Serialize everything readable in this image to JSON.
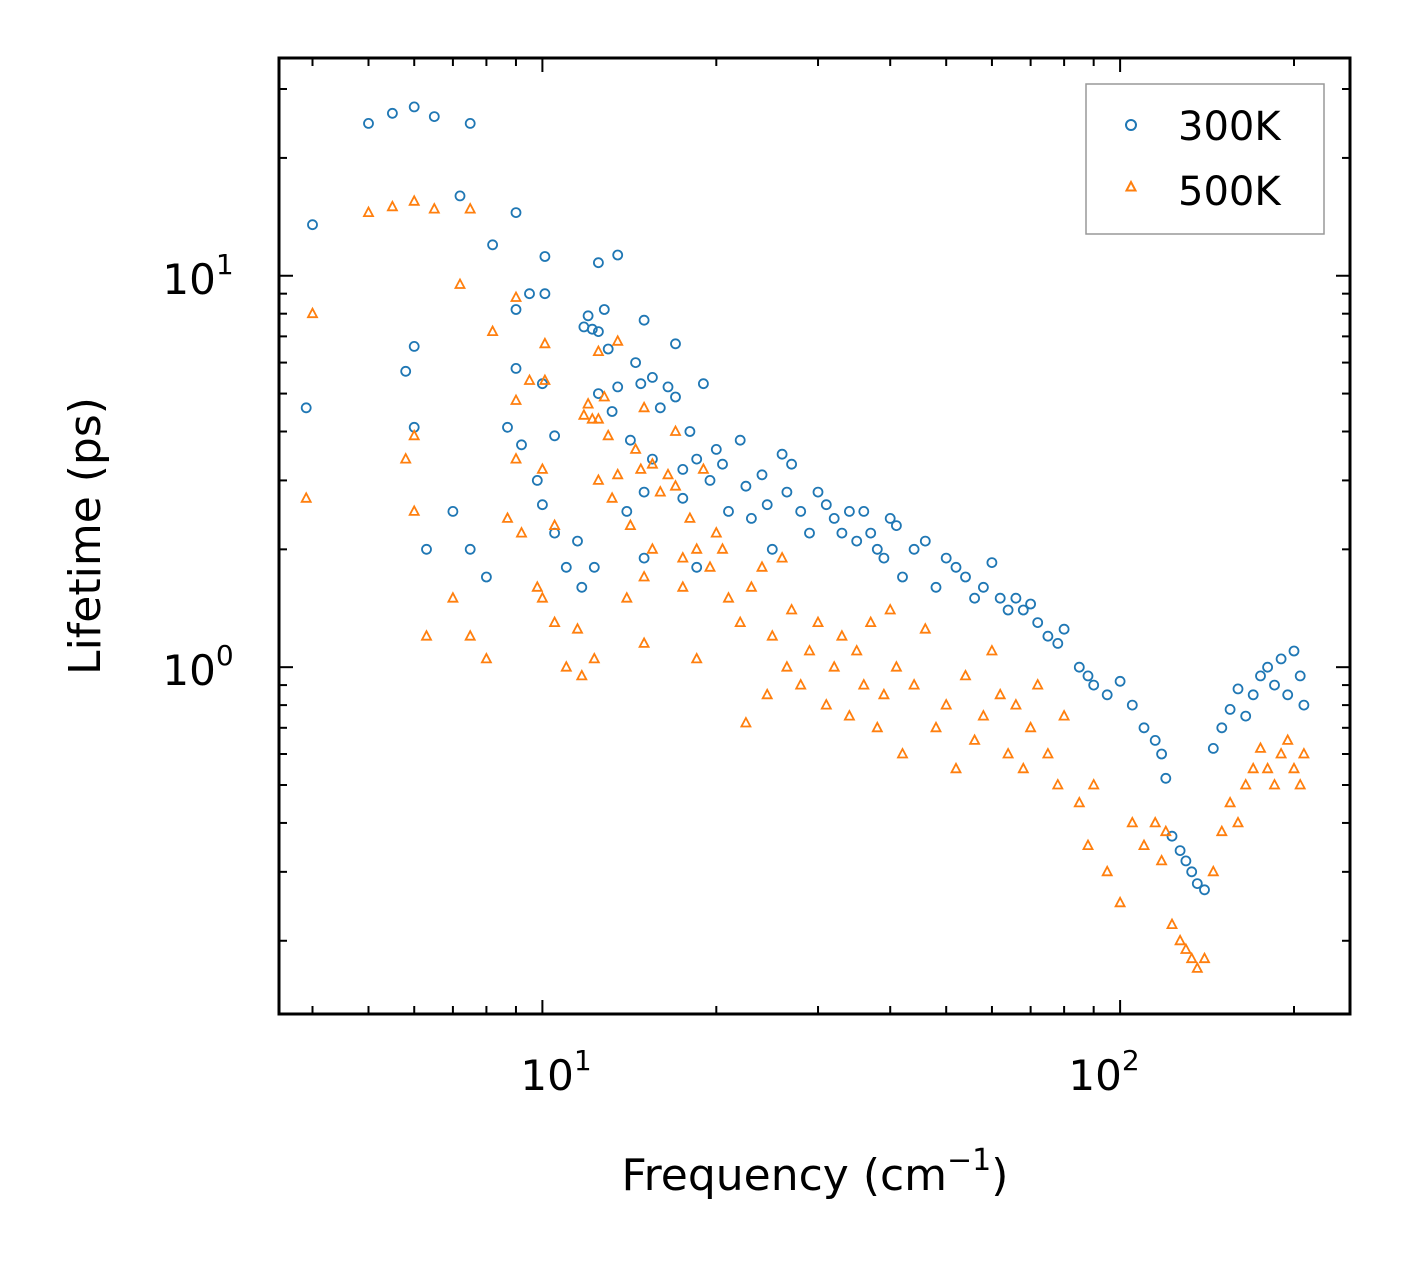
{
  "chart_data": {
    "type": "scatter",
    "x_scale": "log",
    "y_scale": "log",
    "xlim": [
      3.5,
      250
    ],
    "ylim": [
      0.13,
      36
    ],
    "xlabel": "Frequency (cm",
    "xlabel_sup": "−1",
    "xlabel_close": ")",
    "ylabel": "Lifetime (ps)",
    "x_ticks": [
      {
        "base": "10",
        "exp": "1",
        "value": 10
      },
      {
        "base": "10",
        "exp": "2",
        "value": 100
      }
    ],
    "y_ticks": [
      {
        "base": "10",
        "exp": "0",
        "value": 1
      },
      {
        "base": "10",
        "exp": "1",
        "value": 10
      }
    ],
    "legend_position": "top-right",
    "colors": {
      "300K": "#1f77b4",
      "500K": "#ff7f0e"
    },
    "series": [
      {
        "name": "300K",
        "marker": "circle",
        "points": [
          [
            3.9,
            4.6
          ],
          [
            4.0,
            13.5
          ],
          [
            5.0,
            24.5
          ],
          [
            5.5,
            26.0
          ],
          [
            6.0,
            27.0
          ],
          [
            6.5,
            25.5
          ],
          [
            7.2,
            16.0
          ],
          [
            7.5,
            24.5
          ],
          [
            5.8,
            5.7
          ],
          [
            6.0,
            6.6
          ],
          [
            6.0,
            4.1
          ],
          [
            6.3,
            2.0
          ],
          [
            7.0,
            2.5
          ],
          [
            7.5,
            2.0
          ],
          [
            8.0,
            1.7
          ],
          [
            8.2,
            12.0
          ],
          [
            8.7,
            4.1
          ],
          [
            9.0,
            14.5
          ],
          [
            9.0,
            8.2
          ],
          [
            9.0,
            5.8
          ],
          [
            9.2,
            3.7
          ],
          [
            9.5,
            9.0
          ],
          [
            9.8,
            3.0
          ],
          [
            10.0,
            5.3
          ],
          [
            10.0,
            2.6
          ],
          [
            10.1,
            11.2
          ],
          [
            10.1,
            9.0
          ],
          [
            10.5,
            3.9
          ],
          [
            10.5,
            2.2
          ],
          [
            11.0,
            1.8
          ],
          [
            11.5,
            2.1
          ],
          [
            11.7,
            1.6
          ],
          [
            11.8,
            7.4
          ],
          [
            12.0,
            7.9
          ],
          [
            12.2,
            7.3
          ],
          [
            12.3,
            1.8
          ],
          [
            12.5,
            7.2
          ],
          [
            12.5,
            5.0
          ],
          [
            12.5,
            10.8
          ],
          [
            12.8,
            8.2
          ],
          [
            13.0,
            6.5
          ],
          [
            13.2,
            4.5
          ],
          [
            13.5,
            5.2
          ],
          [
            13.5,
            11.3
          ],
          [
            14.0,
            2.5
          ],
          [
            14.2,
            3.8
          ],
          [
            14.5,
            6.0
          ],
          [
            14.8,
            5.3
          ],
          [
            15.0,
            7.7
          ],
          [
            15.0,
            2.8
          ],
          [
            15.0,
            1.9
          ],
          [
            15.5,
            5.5
          ],
          [
            15.5,
            3.4
          ],
          [
            16.0,
            4.6
          ],
          [
            16.5,
            5.2
          ],
          [
            17.0,
            6.7
          ],
          [
            17.0,
            4.9
          ],
          [
            17.5,
            3.2
          ],
          [
            17.5,
            2.7
          ],
          [
            18.0,
            4.0
          ],
          [
            18.5,
            3.4
          ],
          [
            18.5,
            1.8
          ],
          [
            19.0,
            5.3
          ],
          [
            19.5,
            3.0
          ],
          [
            20.0,
            3.6
          ],
          [
            20.5,
            3.3
          ],
          [
            21.0,
            2.5
          ],
          [
            22.0,
            3.8
          ],
          [
            22.5,
            2.9
          ],
          [
            23.0,
            2.4
          ],
          [
            24.0,
            3.1
          ],
          [
            24.5,
            2.6
          ],
          [
            25.0,
            2.0
          ],
          [
            26.0,
            3.5
          ],
          [
            26.5,
            2.8
          ],
          [
            27.0,
            3.3
          ],
          [
            28.0,
            2.5
          ],
          [
            29.0,
            2.2
          ],
          [
            30.0,
            2.8
          ],
          [
            31.0,
            2.6
          ],
          [
            32.0,
            2.4
          ],
          [
            33.0,
            2.2
          ],
          [
            34.0,
            2.5
          ],
          [
            35.0,
            2.1
          ],
          [
            36.0,
            2.5
          ],
          [
            37.0,
            2.2
          ],
          [
            38.0,
            2.0
          ],
          [
            39.0,
            1.9
          ],
          [
            40.0,
            2.4
          ],
          [
            41.0,
            2.3
          ],
          [
            42.0,
            1.7
          ],
          [
            44.0,
            2.0
          ],
          [
            46.0,
            2.1
          ],
          [
            48.0,
            1.6
          ],
          [
            50.0,
            1.9
          ],
          [
            52.0,
            1.8
          ],
          [
            54.0,
            1.7
          ],
          [
            56.0,
            1.5
          ],
          [
            58.0,
            1.6
          ],
          [
            60.0,
            1.85
          ],
          [
            62.0,
            1.5
          ],
          [
            64.0,
            1.4
          ],
          [
            66.0,
            1.5
          ],
          [
            68.0,
            1.4
          ],
          [
            70.0,
            1.45
          ],
          [
            72.0,
            1.3
          ],
          [
            75.0,
            1.2
          ],
          [
            78.0,
            1.15
          ],
          [
            80.0,
            1.25
          ],
          [
            85.0,
            1.0
          ],
          [
            88.0,
            0.95
          ],
          [
            90.0,
            0.9
          ],
          [
            95.0,
            0.85
          ],
          [
            100.0,
            0.92
          ],
          [
            105.0,
            0.8
          ],
          [
            110.0,
            0.7
          ],
          [
            115.0,
            0.65
          ],
          [
            118.0,
            0.6
          ],
          [
            120.0,
            0.52
          ],
          [
            123.0,
            0.37
          ],
          [
            127.0,
            0.34
          ],
          [
            130.0,
            0.32
          ],
          [
            133.0,
            0.3
          ],
          [
            136.0,
            0.28
          ],
          [
            140.0,
            0.27
          ],
          [
            145.0,
            0.62
          ],
          [
            150.0,
            0.7
          ],
          [
            155.0,
            0.78
          ],
          [
            160.0,
            0.88
          ],
          [
            165.0,
            0.75
          ],
          [
            170.0,
            0.85
          ],
          [
            175.0,
            0.95
          ],
          [
            180.0,
            1.0
          ],
          [
            185.0,
            0.9
          ],
          [
            190.0,
            1.05
          ],
          [
            195.0,
            0.85
          ],
          [
            200.0,
            1.1
          ],
          [
            205.0,
            0.95
          ],
          [
            208.0,
            0.8
          ]
        ]
      },
      {
        "name": "500K",
        "marker": "triangle",
        "points": [
          [
            3.9,
            2.7
          ],
          [
            4.0,
            8.0
          ],
          [
            5.0,
            14.5
          ],
          [
            5.5,
            15.0
          ],
          [
            6.0,
            15.5
          ],
          [
            6.5,
            14.8
          ],
          [
            7.2,
            9.5
          ],
          [
            7.5,
            14.8
          ],
          [
            5.8,
            3.4
          ],
          [
            6.0,
            3.9
          ],
          [
            6.0,
            2.5
          ],
          [
            6.3,
            1.2
          ],
          [
            7.0,
            1.5
          ],
          [
            7.5,
            1.2
          ],
          [
            8.0,
            1.05
          ],
          [
            8.2,
            7.2
          ],
          [
            8.7,
            2.4
          ],
          [
            9.0,
            8.8
          ],
          [
            9.0,
            4.8
          ],
          [
            9.0,
            3.4
          ],
          [
            9.2,
            2.2
          ],
          [
            9.5,
            5.4
          ],
          [
            9.8,
            1.6
          ],
          [
            10.0,
            3.2
          ],
          [
            10.0,
            1.5
          ],
          [
            10.1,
            6.7
          ],
          [
            10.1,
            5.4
          ],
          [
            10.5,
            2.3
          ],
          [
            10.5,
            1.3
          ],
          [
            11.0,
            1.0
          ],
          [
            11.5,
            1.25
          ],
          [
            11.7,
            0.95
          ],
          [
            11.8,
            4.4
          ],
          [
            12.0,
            4.7
          ],
          [
            12.2,
            4.3
          ],
          [
            12.3,
            1.05
          ],
          [
            12.5,
            4.3
          ],
          [
            12.5,
            3.0
          ],
          [
            12.5,
            6.4
          ],
          [
            12.8,
            4.9
          ],
          [
            13.0,
            3.9
          ],
          [
            13.2,
            2.7
          ],
          [
            13.5,
            3.1
          ],
          [
            13.5,
            6.8
          ],
          [
            14.0,
            1.5
          ],
          [
            14.2,
            2.3
          ],
          [
            14.5,
            3.6
          ],
          [
            14.8,
            3.2
          ],
          [
            15.0,
            4.6
          ],
          [
            15.0,
            1.7
          ],
          [
            15.0,
            1.15
          ],
          [
            15.5,
            3.3
          ],
          [
            15.5,
            2.0
          ],
          [
            16.0,
            2.8
          ],
          [
            16.5,
            3.1
          ],
          [
            17.0,
            4.0
          ],
          [
            17.0,
            2.9
          ],
          [
            17.5,
            1.9
          ],
          [
            17.5,
            1.6
          ],
          [
            18.0,
            2.4
          ],
          [
            18.5,
            2.0
          ],
          [
            18.5,
            1.05
          ],
          [
            19.0,
            3.2
          ],
          [
            19.5,
            1.8
          ],
          [
            20.0,
            2.2
          ],
          [
            20.5,
            2.0
          ],
          [
            21.0,
            1.5
          ],
          [
            22.0,
            1.3
          ],
          [
            22.5,
            0.72
          ],
          [
            23.0,
            1.6
          ],
          [
            24.0,
            1.8
          ],
          [
            24.5,
            0.85
          ],
          [
            25.0,
            1.2
          ],
          [
            26.0,
            1.9
          ],
          [
            26.5,
            1.0
          ],
          [
            27.0,
            1.4
          ],
          [
            28.0,
            0.9
          ],
          [
            29.0,
            1.1
          ],
          [
            30.0,
            1.3
          ],
          [
            31.0,
            0.8
          ],
          [
            32.0,
            1.0
          ],
          [
            33.0,
            1.2
          ],
          [
            34.0,
            0.75
          ],
          [
            35.0,
            1.1
          ],
          [
            36.0,
            0.9
          ],
          [
            37.0,
            1.3
          ],
          [
            38.0,
            0.7
          ],
          [
            39.0,
            0.85
          ],
          [
            40.0,
            1.4
          ],
          [
            41.0,
            1.0
          ],
          [
            42.0,
            0.6
          ],
          [
            44.0,
            0.9
          ],
          [
            46.0,
            1.25
          ],
          [
            48.0,
            0.7
          ],
          [
            50.0,
            0.8
          ],
          [
            52.0,
            0.55
          ],
          [
            54.0,
            0.95
          ],
          [
            56.0,
            0.65
          ],
          [
            58.0,
            0.75
          ],
          [
            60.0,
            1.1
          ],
          [
            62.0,
            0.85
          ],
          [
            64.0,
            0.6
          ],
          [
            66.0,
            0.8
          ],
          [
            68.0,
            0.55
          ],
          [
            70.0,
            0.7
          ],
          [
            72.0,
            0.9
          ],
          [
            75.0,
            0.6
          ],
          [
            78.0,
            0.5
          ],
          [
            80.0,
            0.75
          ],
          [
            85.0,
            0.45
          ],
          [
            88.0,
            0.35
          ],
          [
            90.0,
            0.5
          ],
          [
            95.0,
            0.3
          ],
          [
            100.0,
            0.25
          ],
          [
            105.0,
            0.4
          ],
          [
            110.0,
            0.35
          ],
          [
            115.0,
            0.4
          ],
          [
            118.0,
            0.32
          ],
          [
            120.0,
            0.38
          ],
          [
            123.0,
            0.22
          ],
          [
            127.0,
            0.2
          ],
          [
            130.0,
            0.19
          ],
          [
            133.0,
            0.18
          ],
          [
            136.0,
            0.17
          ],
          [
            140.0,
            0.18
          ],
          [
            145.0,
            0.3
          ],
          [
            150.0,
            0.38
          ],
          [
            155.0,
            0.45
          ],
          [
            160.0,
            0.4
          ],
          [
            165.0,
            0.5
          ],
          [
            170.0,
            0.55
          ],
          [
            175.0,
            0.62
          ],
          [
            180.0,
            0.55
          ],
          [
            185.0,
            0.5
          ],
          [
            190.0,
            0.6
          ],
          [
            195.0,
            0.65
          ],
          [
            200.0,
            0.55
          ],
          [
            205.0,
            0.5
          ],
          [
            208.0,
            0.6
          ]
        ]
      }
    ]
  }
}
